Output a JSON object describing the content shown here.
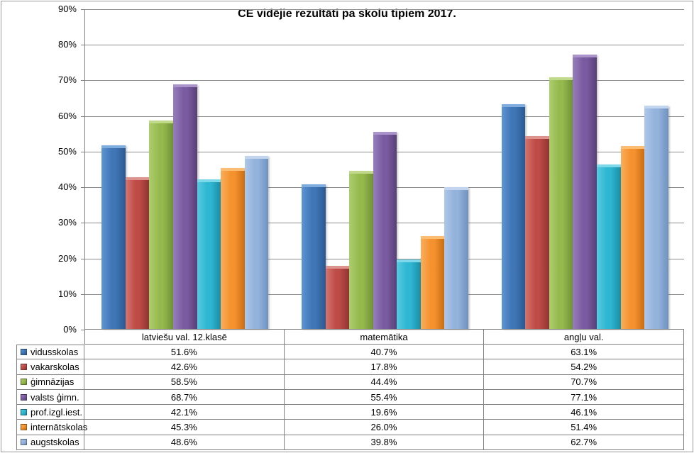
{
  "chart_data": {
    "type": "bar",
    "title": "CE vidējie rezultāti pa skolu tipiem 2017.",
    "categories": [
      "latviešu val. 12.klasē",
      "matemātika",
      "angļu val."
    ],
    "series": [
      {
        "name": "vidusskolas",
        "values": [
          51.6,
          40.7,
          63.1
        ],
        "color": "#4076B5",
        "color_light": "#5E95D3",
        "color_dark": "#2B5991",
        "color_cap": "#7FACDE"
      },
      {
        "name": "vakarskolas",
        "values": [
          42.6,
          17.8,
          54.2
        ],
        "color": "#BF4B47",
        "color_light": "#D4756F",
        "color_dark": "#8E3532",
        "color_cap": "#DC928D"
      },
      {
        "name": "ģimnāzijas",
        "values": [
          58.5,
          44.4,
          70.7
        ],
        "color": "#95B94D",
        "color_light": "#AECD6E",
        "color_dark": "#6F9137",
        "color_cap": "#C0D98A"
      },
      {
        "name": "valsts ģimn.",
        "values": [
          68.7,
          55.4,
          77.1
        ],
        "color": "#7A5BA1",
        "color_light": "#977EBB",
        "color_dark": "#584077",
        "color_cap": "#AB94C9"
      },
      {
        "name": "prof.izgl.iest.",
        "values": [
          42.1,
          19.6,
          46.1
        ],
        "color": "#2EB6D2",
        "color_light": "#57CBE1",
        "color_dark": "#1B8DA6",
        "color_cap": "#7BD9E9"
      },
      {
        "name": "internātskolas",
        "values": [
          45.3,
          26.0,
          51.4
        ],
        "color": "#F5912F",
        "color_light": "#F9AE5B",
        "color_dark": "#C96E12",
        "color_cap": "#FBBD74"
      },
      {
        "name": "augstskolas",
        "values": [
          48.6,
          39.8,
          62.7
        ],
        "color": "#93B2DC",
        "color_light": "#AFC7E8",
        "color_dark": "#6F92BE",
        "color_cap": "#C3D4EE"
      }
    ],
    "y_axis": {
      "min": 0,
      "max": 90,
      "step": 10,
      "suffix": "%"
    },
    "value_suffix": "%",
    "grid": true,
    "legend_position": "table-left"
  },
  "colors": {
    "grid_line": "#8C8C8C",
    "axis_line": "#7F7F7F",
    "table_border": "#808080",
    "frame_border": "#9A9A9A",
    "background": "#FFFFFF",
    "text": "#000000"
  }
}
